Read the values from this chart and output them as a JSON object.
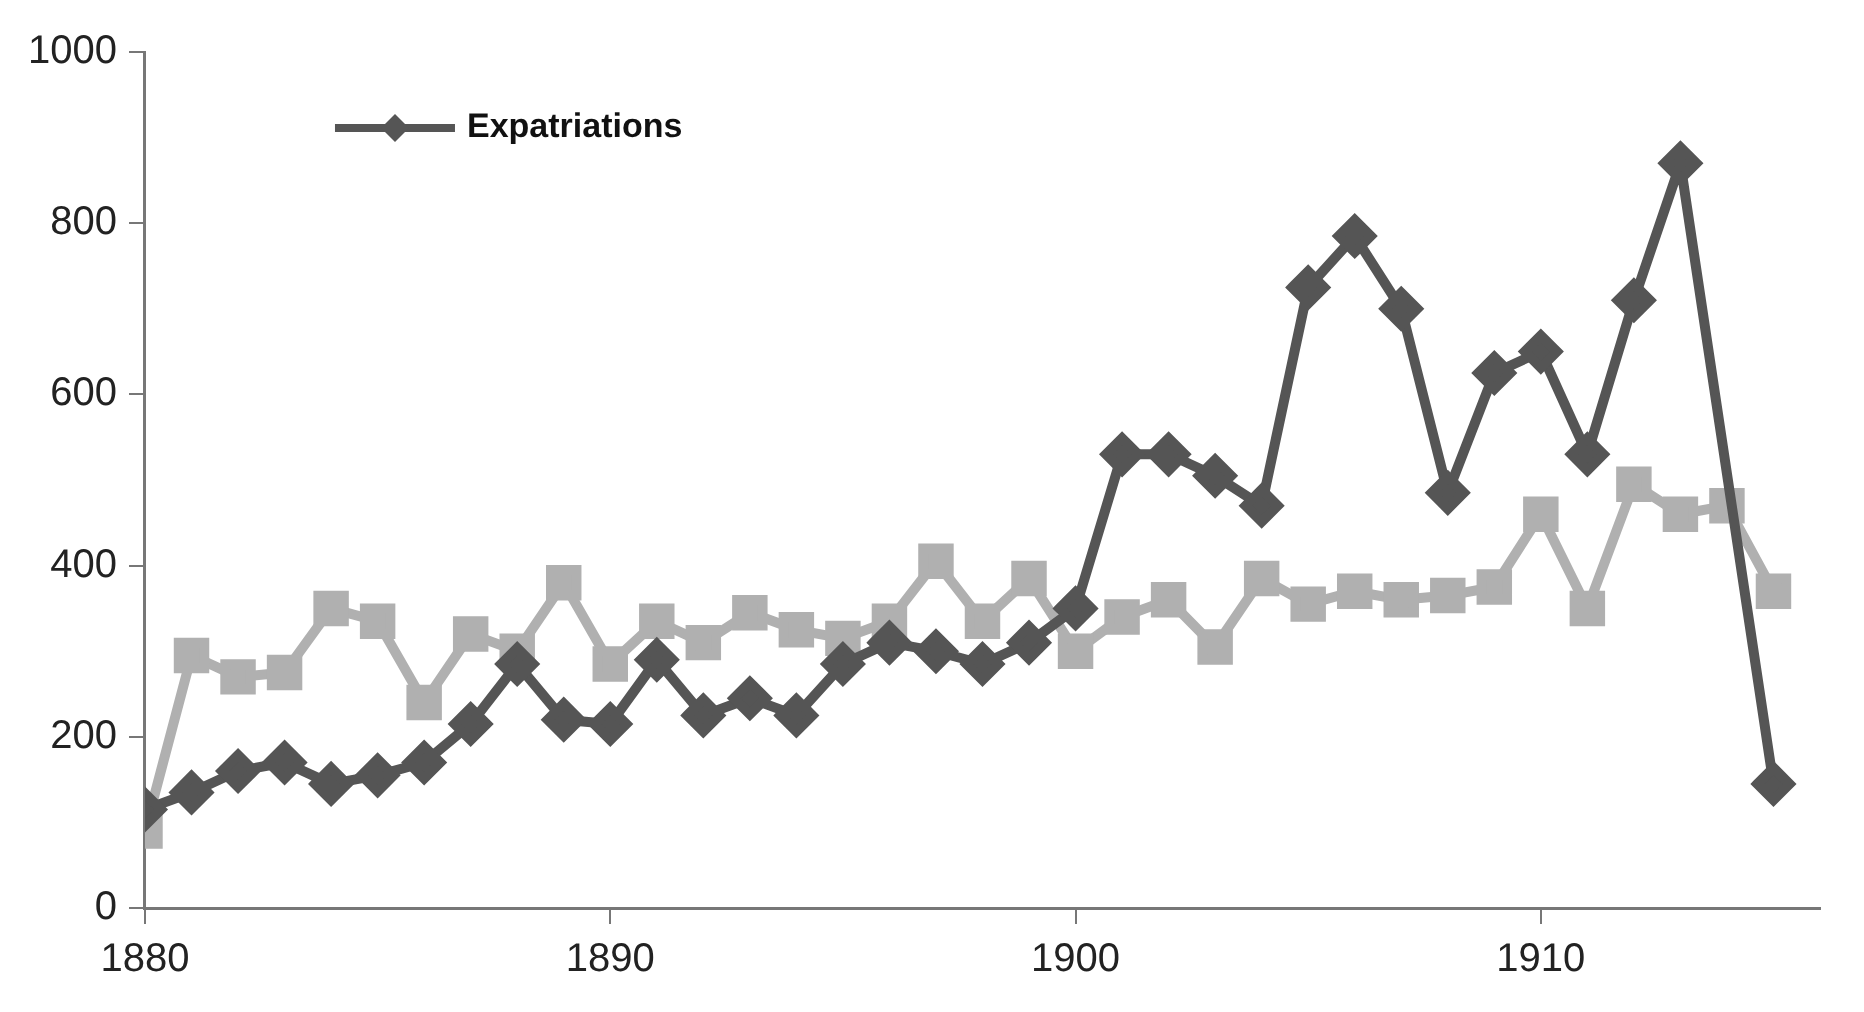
{
  "chart_data": {
    "type": "line",
    "x": [
      1880,
      1881,
      1882,
      1883,
      1884,
      1885,
      1886,
      1887,
      1888,
      1889,
      1890,
      1891,
      1892,
      1893,
      1894,
      1895,
      1896,
      1897,
      1898,
      1899,
      1900,
      1901,
      1902,
      1903,
      1904,
      1905,
      1906,
      1907,
      1908,
      1909,
      1910,
      1911,
      1912,
      1913,
      1914,
      1915
    ],
    "series": [
      {
        "name": "Expatriations",
        "color": "#555555",
        "marker": "diamond",
        "x": [
          1880,
          1881,
          1882,
          1883,
          1884,
          1885,
          1886,
          1887,
          1888,
          1889,
          1890,
          1891,
          1892,
          1893,
          1894,
          1895,
          1896,
          1897,
          1898,
          1899,
          1900,
          1901,
          1902,
          1903,
          1904,
          1905,
          1906,
          1907,
          1908,
          1909,
          1910,
          1911,
          1912,
          1913,
          1915
        ],
        "values": [
          115,
          135,
          160,
          170,
          145,
          155,
          170,
          215,
          285,
          220,
          215,
          290,
          225,
          245,
          225,
          285,
          310,
          300,
          285,
          310,
          350,
          530,
          530,
          505,
          470,
          725,
          785,
          700,
          485,
          625,
          650,
          530,
          710,
          870,
          145
        ]
      },
      {
        "color": "#b0b0b0",
        "marker": "square",
        "values": [
          90,
          295,
          270,
          275,
          350,
          335,
          240,
          320,
          300,
          380,
          285,
          335,
          310,
          345,
          325,
          315,
          335,
          405,
          335,
          385,
          300,
          340,
          360,
          305,
          385,
          355,
          370,
          360,
          365,
          375,
          460,
          350,
          495,
          460,
          470,
          370
        ]
      }
    ],
    "xlim": [
      1880,
      1916
    ],
    "xticks": [
      1880,
      1890,
      1900,
      1910
    ],
    "ylim": [
      0,
      1000
    ],
    "yticks": [
      0,
      200,
      400,
      600,
      800,
      1000
    ],
    "grid": false,
    "legend": "top left"
  }
}
